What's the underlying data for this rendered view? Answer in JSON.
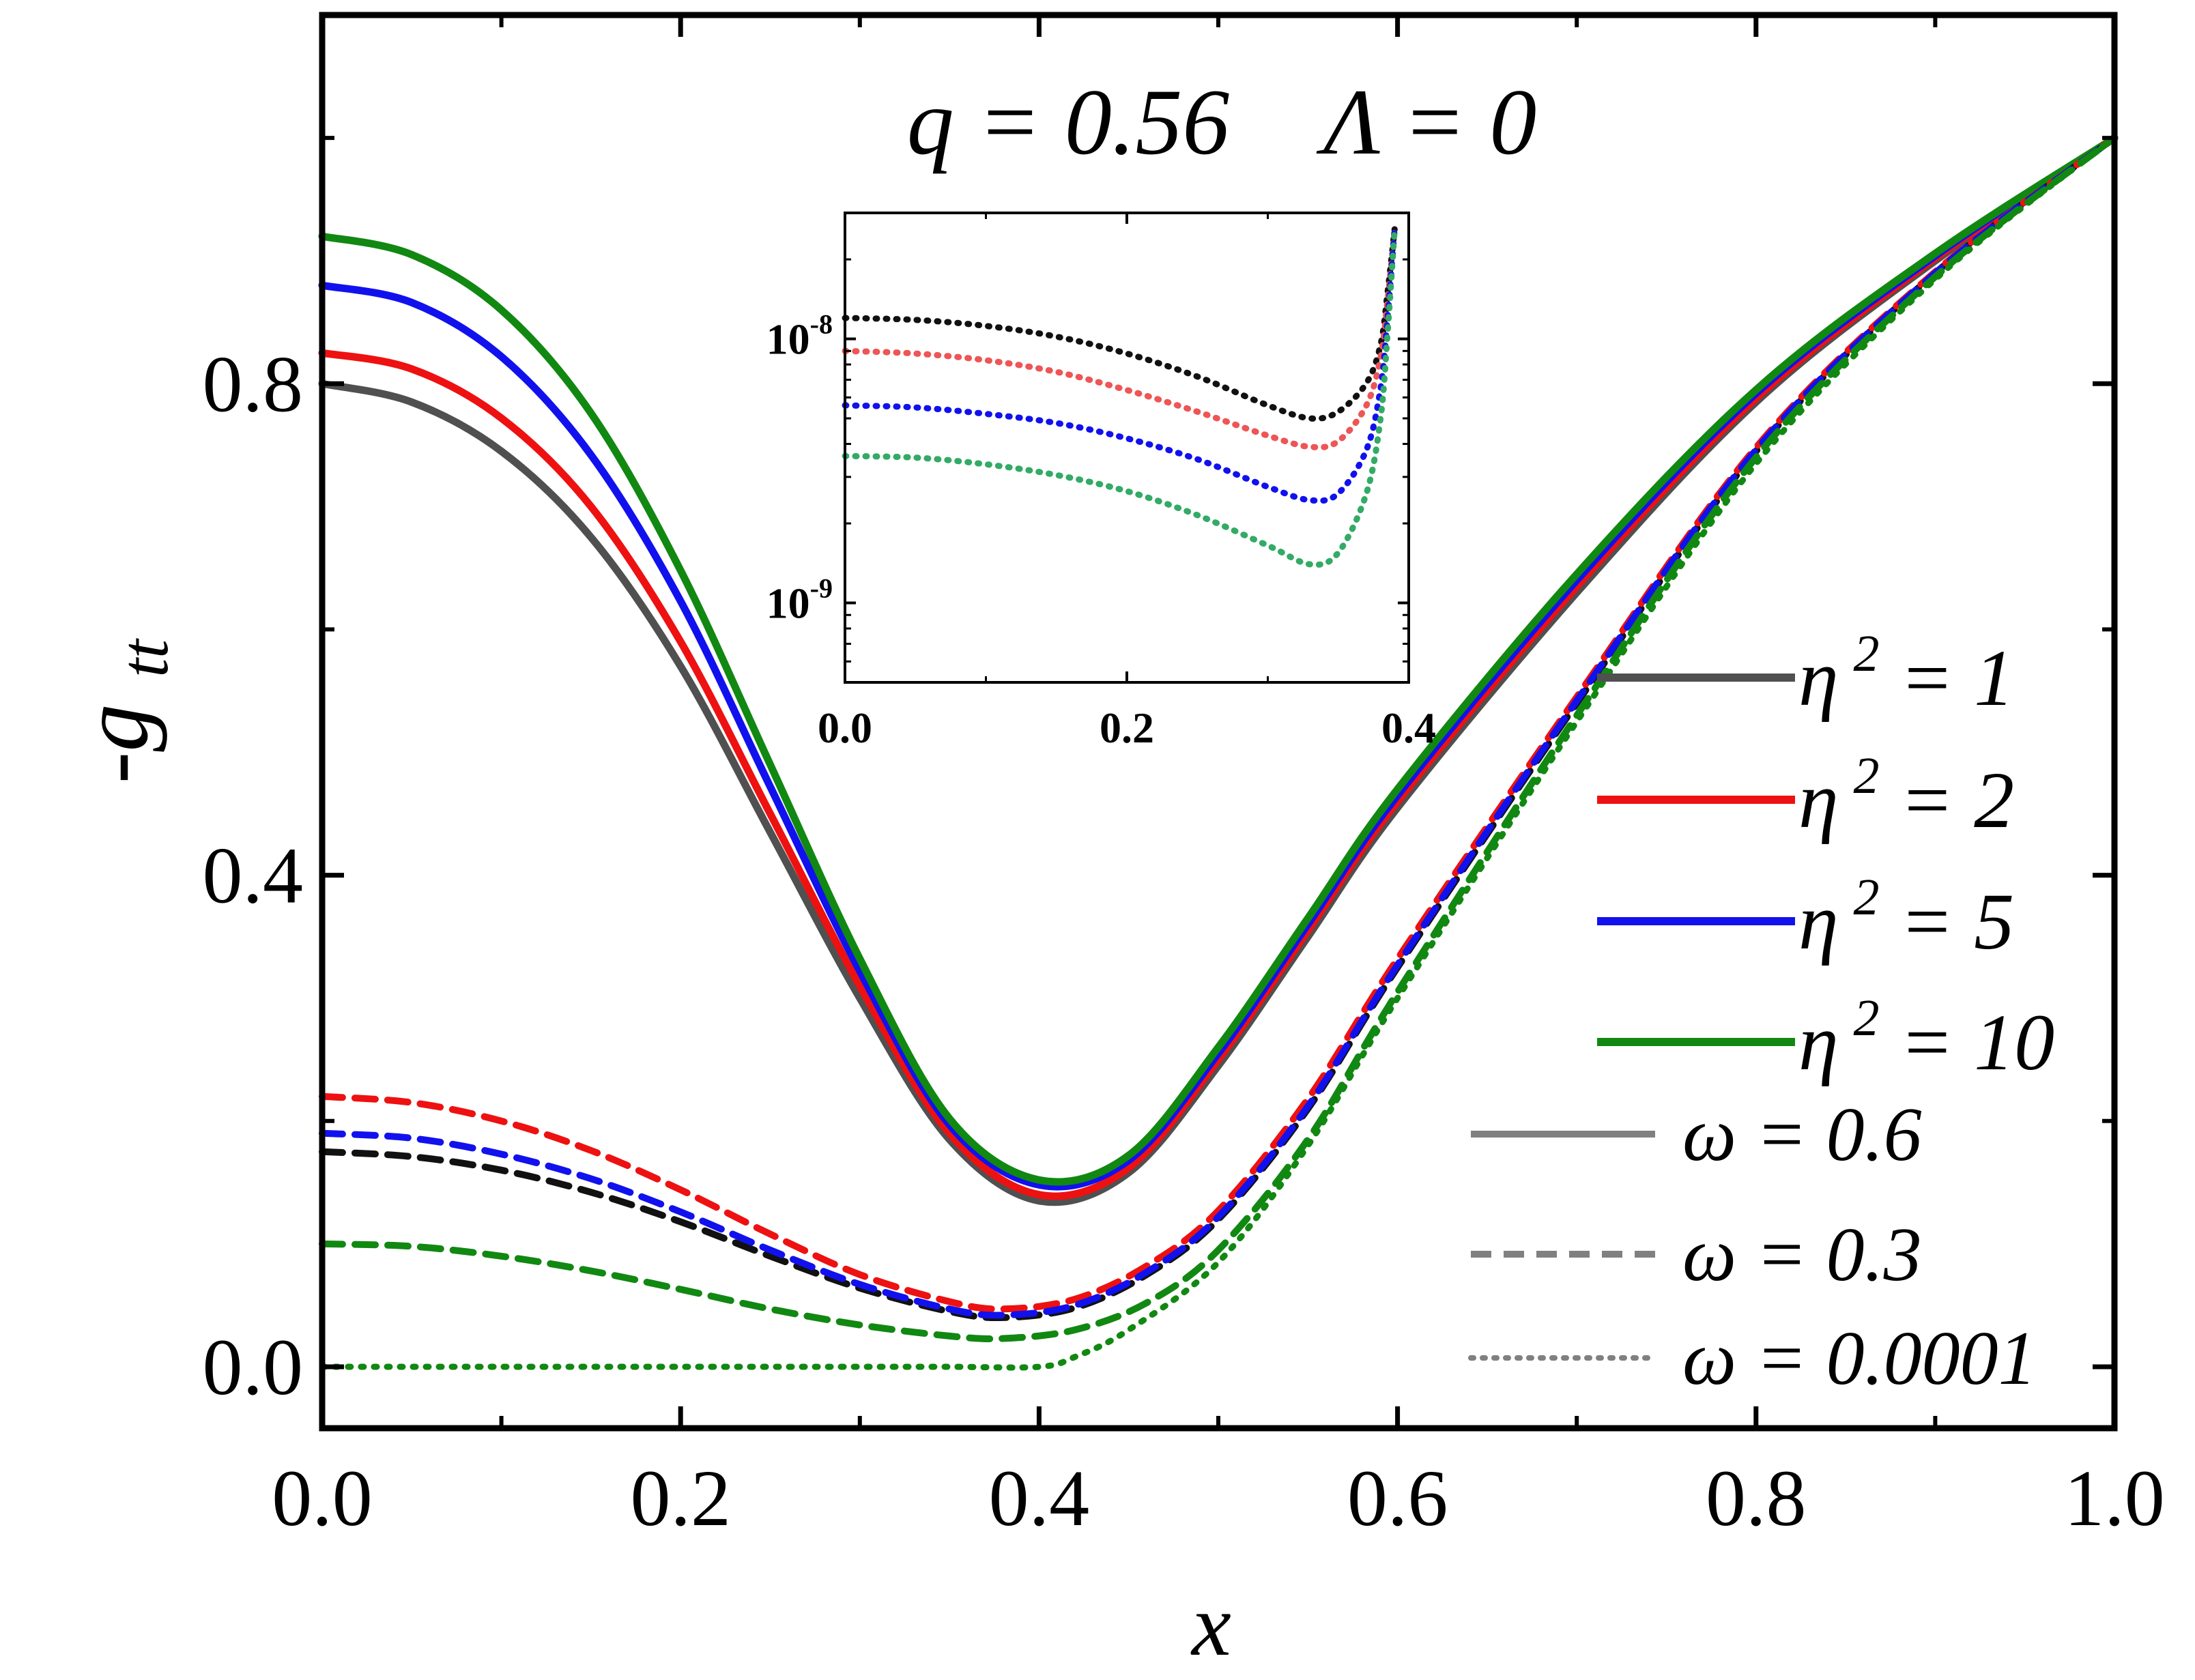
{
  "chart_data": {
    "type": "line",
    "title": "q = 0.56    Λ = 0",
    "xlabel": "x",
    "ylabel": "-g",
    "ylabel_sub": "tt",
    "xlim": [
      0,
      1
    ],
    "ylim": [
      -0.05,
      1.1
    ],
    "xticks": [
      "0.0",
      "0.2",
      "0.4",
      "0.6",
      "0.8",
      "1.0"
    ],
    "yticks": [
      "0.0",
      "0.4",
      "0.8"
    ],
    "colors": {
      "eta1": "#505050",
      "eta2": "#ee1111",
      "eta5": "#1111ee",
      "eta10": "#118811",
      "legend_gray": "#808080",
      "inset_eta1": "#111111",
      "inset_eta2": "#ee5555",
      "inset_eta5": "#1111ee",
      "inset_eta10": "#33aa66"
    },
    "legend": {
      "position": "lower-right",
      "eta_entries": [
        {
          "label": "η",
          "sup": "2",
          "value": " = 1",
          "color": "#505050"
        },
        {
          "label": "η",
          "sup": "2",
          "value": " = 2",
          "color": "#ee1111"
        },
        {
          "label": "η",
          "sup": "2",
          "value": " = 5",
          "color": "#1111ee"
        },
        {
          "label": "η",
          "sup": "2",
          "value": " = 10",
          "color": "#118811"
        }
      ],
      "omega_entries": [
        {
          "label": "ω = 0.6",
          "style": "solid"
        },
        {
          "label": "ω = 0.3",
          "style": "dashed"
        },
        {
          "label": "ω = 0.0001",
          "style": "dotted"
        }
      ]
    },
    "series": [
      {
        "name": "η²=1, ω=0.6",
        "style": "solid",
        "color": "#505050",
        "x": [
          0,
          0.05,
          0.1,
          0.15,
          0.2,
          0.25,
          0.3,
          0.35,
          0.4,
          0.45,
          0.5,
          0.55,
          0.6,
          0.7,
          0.8,
          0.9,
          1.0
        ],
        "y": [
          0.8,
          0.785,
          0.745,
          0.675,
          0.57,
          0.435,
          0.3,
          0.185,
          0.135,
          0.158,
          0.245,
          0.35,
          0.455,
          0.63,
          0.785,
          0.9,
          1.0
        ]
      },
      {
        "name": "η²=2, ω=0.6",
        "style": "solid",
        "color": "#ee1111",
        "x": [
          0,
          0.05,
          0.1,
          0.15,
          0.2,
          0.25,
          0.3,
          0.35,
          0.4,
          0.45,
          0.5,
          0.55,
          0.6,
          0.7,
          0.8,
          0.9,
          1.0
        ],
        "y": [
          0.825,
          0.812,
          0.772,
          0.7,
          0.59,
          0.45,
          0.31,
          0.19,
          0.14,
          0.162,
          0.25,
          0.355,
          0.46,
          0.635,
          0.788,
          0.902,
          1.0
        ]
      },
      {
        "name": "η²=5, ω=0.6",
        "style": "solid",
        "color": "#1111ee",
        "x": [
          0,
          0.05,
          0.1,
          0.15,
          0.2,
          0.25,
          0.3,
          0.35,
          0.4,
          0.45,
          0.5,
          0.55,
          0.6,
          0.7,
          0.8,
          0.9,
          1.0
        ],
        "y": [
          0.88,
          0.866,
          0.822,
          0.742,
          0.623,
          0.472,
          0.322,
          0.197,
          0.148,
          0.168,
          0.255,
          0.36,
          0.465,
          0.64,
          0.792,
          0.904,
          1.0
        ]
      },
      {
        "name": "η²=10, ω=0.6",
        "style": "solid",
        "color": "#118811",
        "x": [
          0,
          0.05,
          0.1,
          0.15,
          0.2,
          0.25,
          0.3,
          0.35,
          0.4,
          0.45,
          0.5,
          0.55,
          0.6,
          0.7,
          0.8,
          0.9,
          1.0
        ],
        "y": [
          0.92,
          0.905,
          0.86,
          0.776,
          0.648,
          0.49,
          0.332,
          0.202,
          0.152,
          0.172,
          0.26,
          0.365,
          0.47,
          0.645,
          0.795,
          0.906,
          1.0
        ]
      },
      {
        "name": "η²=1, ω=0.3",
        "style": "dashed",
        "color": "#111111",
        "x": [
          0,
          0.05,
          0.1,
          0.15,
          0.2,
          0.25,
          0.3,
          0.35,
          0.38,
          0.42,
          0.46,
          0.5,
          0.55,
          0.6,
          0.7,
          0.8,
          0.9,
          1.0
        ],
        "y": [
          0.175,
          0.171,
          0.16,
          0.142,
          0.118,
          0.09,
          0.064,
          0.045,
          0.04,
          0.048,
          0.075,
          0.12,
          0.21,
          0.325,
          0.54,
          0.745,
          0.89,
          1.0
        ]
      },
      {
        "name": "η²=2, ω=0.3",
        "style": "dashed",
        "color": "#ee1111",
        "x": [
          0,
          0.05,
          0.1,
          0.15,
          0.2,
          0.25,
          0.3,
          0.35,
          0.38,
          0.42,
          0.46,
          0.5,
          0.55,
          0.6,
          0.7,
          0.8,
          0.9,
          1.0
        ],
        "y": [
          0.22,
          0.215,
          0.2,
          0.176,
          0.144,
          0.108,
          0.075,
          0.053,
          0.047,
          0.055,
          0.082,
          0.127,
          0.218,
          0.332,
          0.545,
          0.748,
          0.891,
          1.0
        ]
      },
      {
        "name": "η²=5, ω=0.3",
        "style": "dashed",
        "color": "#1111ee",
        "x": [
          0,
          0.05,
          0.1,
          0.15,
          0.2,
          0.25,
          0.3,
          0.35,
          0.38,
          0.42,
          0.46,
          0.5,
          0.55,
          0.6,
          0.7,
          0.8,
          0.9,
          1.0
        ],
        "y": [
          0.19,
          0.186,
          0.173,
          0.153,
          0.126,
          0.095,
          0.067,
          0.047,
          0.042,
          0.05,
          0.077,
          0.122,
          0.212,
          0.327,
          0.542,
          0.746,
          0.89,
          1.0
        ]
      },
      {
        "name": "η²=10, ω=0.3",
        "style": "dashed",
        "color": "#118811",
        "x": [
          0,
          0.05,
          0.1,
          0.15,
          0.2,
          0.25,
          0.3,
          0.35,
          0.38,
          0.42,
          0.46,
          0.5,
          0.55,
          0.6,
          0.7,
          0.8,
          0.9,
          1.0
        ],
        "y": [
          0.1,
          0.098,
          0.09,
          0.078,
          0.063,
          0.047,
          0.034,
          0.025,
          0.023,
          0.03,
          0.052,
          0.095,
          0.185,
          0.305,
          0.53,
          0.74,
          0.887,
          1.0
        ]
      },
      {
        "name": "ω=0.0001",
        "style": "dotted",
        "color": "#118811",
        "x": [
          0,
          0.1,
          0.2,
          0.3,
          0.35,
          0.4,
          0.42,
          0.45,
          0.5,
          0.55,
          0.6,
          0.7,
          0.8,
          0.9,
          1.0
        ],
        "y": [
          0.0,
          0.0,
          0.0,
          0.0,
          0.0,
          0.0,
          0.008,
          0.03,
          0.085,
          0.18,
          0.3,
          0.525,
          0.735,
          0.885,
          1.0
        ]
      }
    ],
    "inset": {
      "type": "line",
      "yscale": "log",
      "xlim": [
        0,
        0.4
      ],
      "ylim": [
        5e-10,
        3e-08
      ],
      "xticks": [
        "0.0",
        "0.2",
        "0.4"
      ],
      "yticks": [
        {
          "base": "10",
          "exp": "-8",
          "value": 1e-08
        },
        {
          "base": "10",
          "exp": "-9",
          "value": 1e-09
        }
      ],
      "series": [
        {
          "name": "η²=1",
          "color": "#111111",
          "x": [
            0,
            0.05,
            0.1,
            0.15,
            0.2,
            0.25,
            0.3,
            0.33,
            0.35,
            0.37,
            0.38,
            0.385,
            0.39
          ],
          "y": [
            1.2e-08,
            1.18e-08,
            1.12e-08,
            1.02e-08,
            8.8e-09,
            7.2e-09,
            5.6e-09,
            5e-09,
            5.3e-09,
            6.8e-09,
            9.5e-09,
            1.5e-08,
            2.6e-08
          ]
        },
        {
          "name": "η²=2",
          "color": "#ee5555",
          "x": [
            0,
            0.05,
            0.1,
            0.15,
            0.2,
            0.25,
            0.3,
            0.33,
            0.35,
            0.37,
            0.38,
            0.385,
            0.39
          ],
          "y": [
            9e-09,
            8.8e-09,
            8.3e-09,
            7.5e-09,
            6.4e-09,
            5.3e-09,
            4.3e-09,
            3.9e-09,
            4.1e-09,
            5.6e-09,
            8.5e-09,
            1.4e-08,
            2.6e-08
          ]
        },
        {
          "name": "η²=5",
          "color": "#1111ee",
          "x": [
            0,
            0.05,
            0.1,
            0.15,
            0.2,
            0.25,
            0.3,
            0.33,
            0.35,
            0.37,
            0.38,
            0.385,
            0.39
          ],
          "y": [
            5.6e-09,
            5.5e-09,
            5.2e-09,
            4.8e-09,
            4.2e-09,
            3.5e-09,
            2.75e-09,
            2.45e-09,
            2.6e-09,
            3.8e-09,
            6.5e-09,
            1.2e-08,
            2.6e-08
          ]
        },
        {
          "name": "η²=10",
          "color": "#33aa66",
          "x": [
            0,
            0.05,
            0.1,
            0.15,
            0.2,
            0.25,
            0.3,
            0.33,
            0.35,
            0.37,
            0.38,
            0.385,
            0.39
          ],
          "y": [
            3.6e-09,
            3.55e-09,
            3.35e-09,
            3.05e-09,
            2.65e-09,
            2.15e-09,
            1.65e-09,
            1.4e-09,
            1.55e-09,
            2.6e-09,
            5e-09,
            1.05e-08,
            2.6e-08
          ]
        }
      ]
    }
  }
}
